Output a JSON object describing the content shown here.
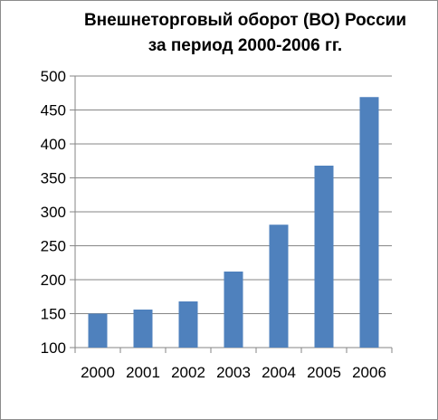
{
  "chart_data": {
    "type": "bar",
    "title_lines": [
      "Внешнеторговый оборот (ВО) России",
      "за период 2000-2006 гг."
    ],
    "categories": [
      "2000",
      "2001",
      "2002",
      "2003",
      "2004",
      "2005",
      "2006"
    ],
    "values": [
      150,
      156,
      168,
      212,
      281,
      368,
      469
    ],
    "ylim": [
      100,
      500
    ],
    "yticks": [
      100,
      150,
      200,
      250,
      300,
      350,
      400,
      450,
      500
    ],
    "grid": true,
    "bar_color": "#4f81bd",
    "legend": "none"
  }
}
